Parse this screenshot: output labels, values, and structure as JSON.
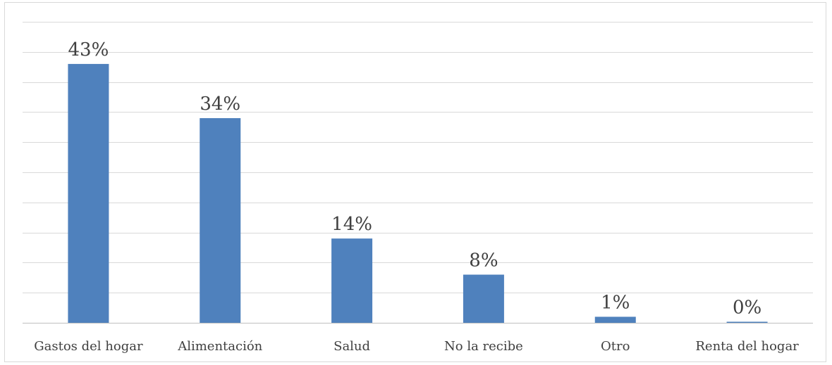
{
  "chart_data": {
    "type": "bar",
    "categories": [
      "Gastos del hogar",
      "Alimentación",
      "Salud",
      "No la recibe",
      "Otro",
      "Renta del hogar"
    ],
    "values": [
      43,
      34,
      14,
      8,
      1,
      0
    ],
    "data_labels": [
      "43%",
      "34%",
      "14%",
      "8%",
      "1%",
      "0%"
    ],
    "title": "",
    "xlabel": "",
    "ylabel": "",
    "ylim": [
      0,
      50
    ],
    "y_tick_step": 5,
    "y_axis_labels_shown": false,
    "grid": true,
    "legend": "none",
    "bar_color": "#4f81bd",
    "grid_color": "#d9d9d9",
    "axis_color": "#bfbfbf",
    "text_color": "#404040"
  }
}
